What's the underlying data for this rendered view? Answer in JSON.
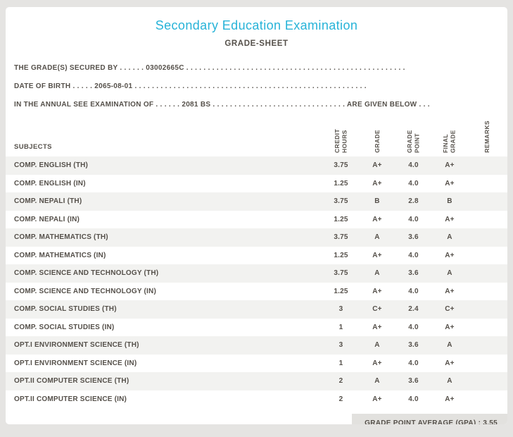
{
  "page": {
    "title": "Secondary Education Examination",
    "subtitle": "GRADE-SHEET"
  },
  "info": {
    "line1": "THE GRADE(S) SECURED BY . . . . . . 03002665C . . . . . . . . . . . . . . . . . . . . . . . . . . . . . . . . . . . . . . . . . . . . . . . . . . .",
    "line2": "DATE OF BIRTH . . . . . 2065-08-01 . . . . . . . . . . . . . . . . . . . . . . . . . . . . . . . . . . . . . . . . . . . . . . . . . . . . . .",
    "line3": "IN THE ANNUAL SEE EXAMINATION OF . . . . . . 2081 BS . . . . . . . . . . . . . . . . . . . . . . . . . . . . . . . ARE GIVEN BELOW . . ."
  },
  "table": {
    "headers": {
      "subjects": "SUBJECTS",
      "credit_hours": "CREDIT HOURS",
      "grade": "GRADE",
      "grade_point": "GRADE POINT",
      "final_grade": "FINAL GRADE",
      "remarks": "REMARKS"
    },
    "rows": [
      {
        "subject": "COMP. ENGLISH (TH)",
        "credit": "3.75",
        "grade": "A+",
        "point": "4.0",
        "final": "A+",
        "remarks": ""
      },
      {
        "subject": "COMP. ENGLISH (IN)",
        "credit": "1.25",
        "grade": "A+",
        "point": "4.0",
        "final": "A+",
        "remarks": ""
      },
      {
        "subject": "COMP. NEPALI (TH)",
        "credit": "3.75",
        "grade": "B",
        "point": "2.8",
        "final": "B",
        "remarks": ""
      },
      {
        "subject": "COMP. NEPALI (IN)",
        "credit": "1.25",
        "grade": "A+",
        "point": "4.0",
        "final": "A+",
        "remarks": ""
      },
      {
        "subject": "COMP. MATHEMATICS (TH)",
        "credit": "3.75",
        "grade": "A",
        "point": "3.6",
        "final": "A",
        "remarks": ""
      },
      {
        "subject": "COMP. MATHEMATICS (IN)",
        "credit": "1.25",
        "grade": "A+",
        "point": "4.0",
        "final": "A+",
        "remarks": ""
      },
      {
        "subject": "COMP. SCIENCE AND TECHNOLOGY (TH)",
        "credit": "3.75",
        "grade": "A",
        "point": "3.6",
        "final": "A",
        "remarks": ""
      },
      {
        "subject": "COMP. SCIENCE AND TECHNOLOGY (IN)",
        "credit": "1.25",
        "grade": "A+",
        "point": "4.0",
        "final": "A+",
        "remarks": ""
      },
      {
        "subject": "COMP. SOCIAL STUDIES (TH)",
        "credit": "3",
        "grade": "C+",
        "point": "2.4",
        "final": "C+",
        "remarks": ""
      },
      {
        "subject": "COMP. SOCIAL STUDIES (IN)",
        "credit": "1",
        "grade": "A+",
        "point": "4.0",
        "final": "A+",
        "remarks": ""
      },
      {
        "subject": "OPT.I ENVIRONMENT SCIENCE (TH)",
        "credit": "3",
        "grade": "A",
        "point": "3.6",
        "final": "A",
        "remarks": ""
      },
      {
        "subject": "OPT.I ENVIRONMENT SCIENCE (IN)",
        "credit": "1",
        "grade": "A+",
        "point": "4.0",
        "final": "A+",
        "remarks": ""
      },
      {
        "subject": "OPT.II COMPUTER SCIENCE (TH)",
        "credit": "2",
        "grade": "A",
        "point": "3.6",
        "final": "A",
        "remarks": ""
      },
      {
        "subject": "OPT.II COMPUTER SCIENCE (IN)",
        "credit": "2",
        "grade": "A+",
        "point": "4.0",
        "final": "A+",
        "remarks": ""
      }
    ]
  },
  "footer": {
    "gpa": "GRADE POINT AVERAGE (GPA) : 3.55"
  },
  "colors": {
    "title_accent": "#27b3d8",
    "body_text": "#55504a",
    "row_stripe": "#f2f2f0",
    "gpa_bar": "#e2e1de"
  }
}
